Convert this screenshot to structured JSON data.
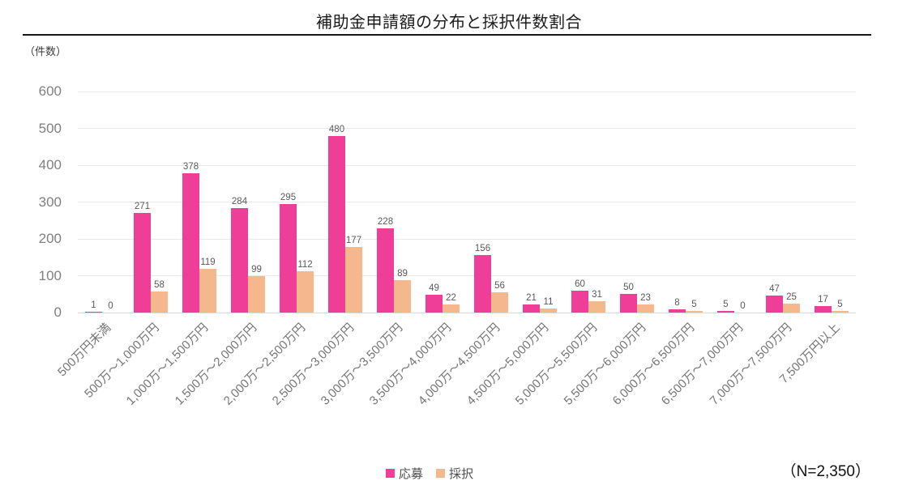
{
  "chart_data": {
    "type": "bar",
    "title": "補助金申請額の分布と採択件数割合",
    "ylabel": "（件数）",
    "xlabel": "",
    "ylim": [
      0,
      600
    ],
    "y_tick_step": 100,
    "grid": true,
    "legend_position": "bottom",
    "categories": [
      "500万円未満",
      "500万～1,000万円",
      "1,000万～1,500万円",
      "1,500万～2,000万円",
      "2,000万～2,500万円",
      "2,500万～3,000万円",
      "3,000万～3,500万円",
      "3,500万～4,000万円",
      "4,000万～4,500万円",
      "4,500万～5,000万円",
      "5,000万～5,500万円",
      "5,500万～6,000万円",
      "6,000万～6,500万円",
      "6,500万～7,000万円",
      "7,000万～7,500万円",
      "7,500万円以上"
    ],
    "series": [
      {
        "key": "applied",
        "name": "応募",
        "color": "#EE3E97",
        "values": [
          1,
          271,
          378,
          284,
          295,
          480,
          228,
          49,
          156,
          21,
          60,
          50,
          8,
          5,
          47,
          17
        ]
      },
      {
        "key": "adopted",
        "name": "採択",
        "color": "#F5B88D",
        "values": [
          0,
          58,
          119,
          99,
          112,
          177,
          89,
          22,
          56,
          11,
          31,
          23,
          5,
          0,
          25,
          5
        ]
      }
    ],
    "note": "（N=2,350）"
  },
  "palette": {
    "gridline": "#E9E9E9",
    "baseline": "#D9D9D9",
    "axis_text": "#7F7F7F",
    "category_text": "#757575",
    "value_label_text": "#595959",
    "title_text": "#1A1A1A"
  }
}
